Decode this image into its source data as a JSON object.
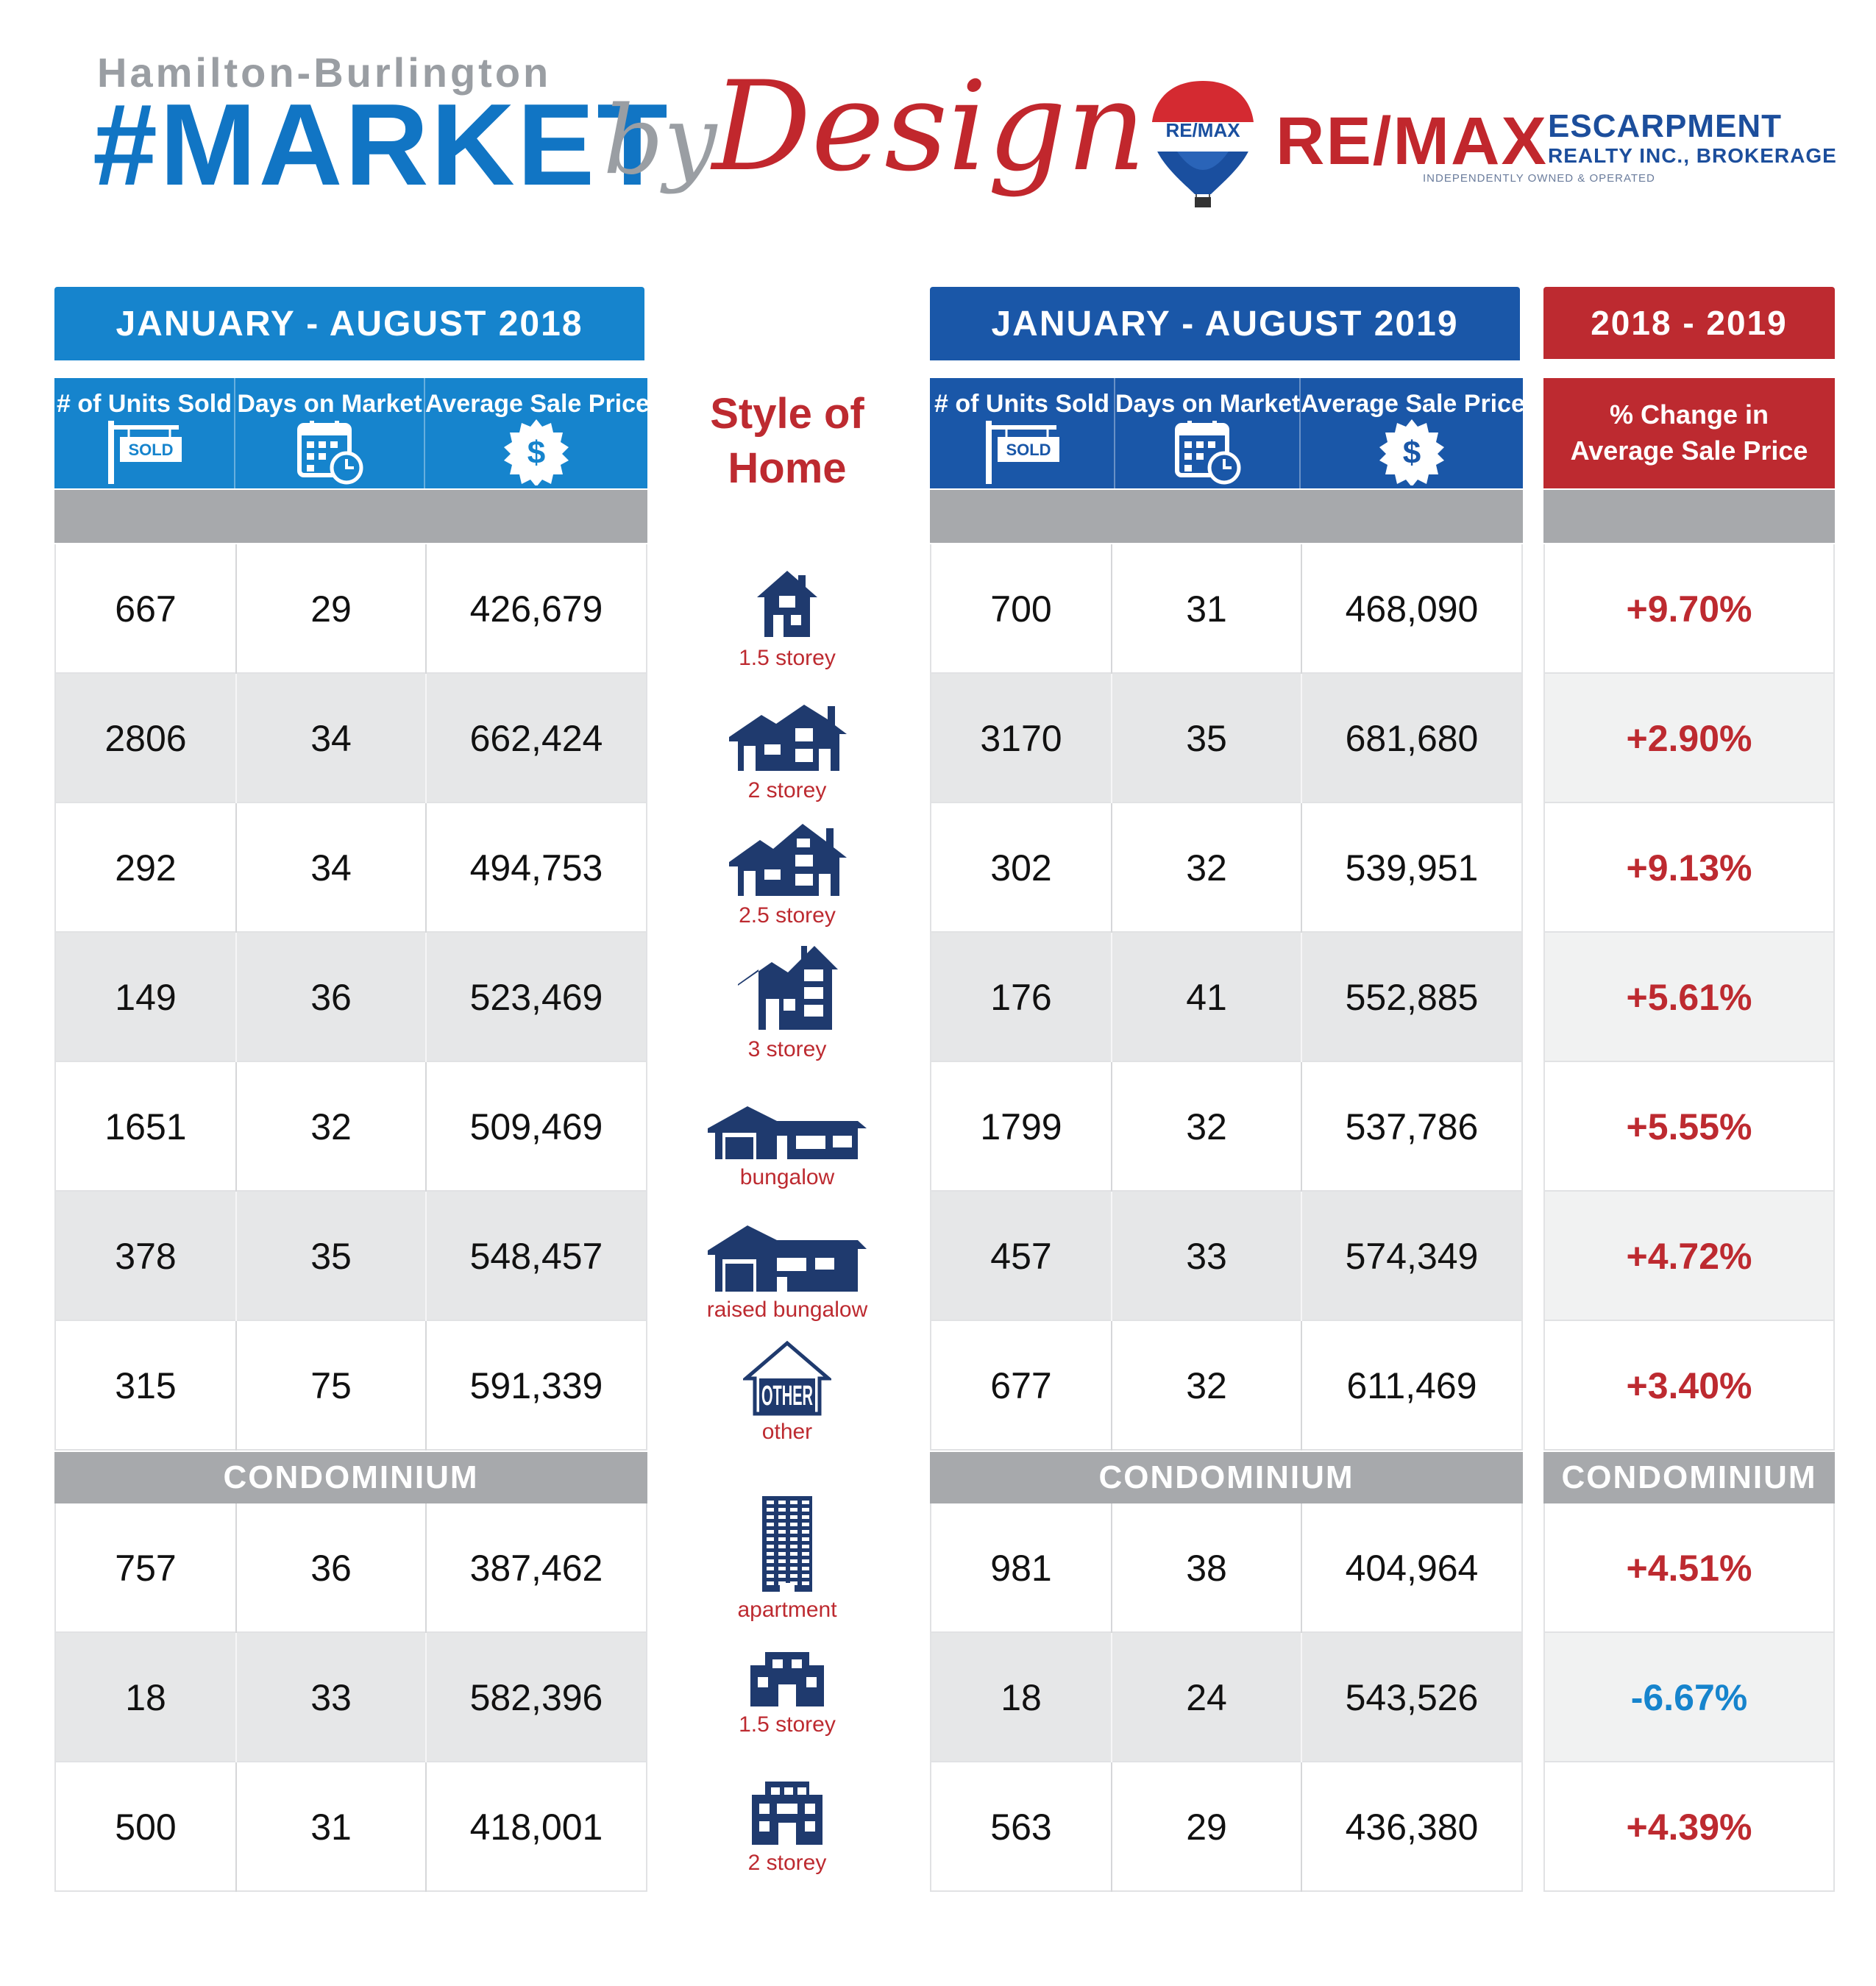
{
  "header": {
    "top_line": "Hamilton-Burlington",
    "main_word": "#MARKET",
    "by_word": "by",
    "design_word": "Design"
  },
  "logo": {
    "balloon_text": "RE/MAX",
    "wordmark": "RE/MAX",
    "line1": "ESCARPMENT",
    "line2": "REALTY INC., BROKERAGE",
    "line3": "INDEPENDENTLY OWNED & OPERATED"
  },
  "banners": {
    "left": "JANUARY -  AUGUST 2018",
    "right": "JANUARY - AUGUST 2019",
    "change": "2018 - 2019"
  },
  "columns": {
    "units": "# of Units Sold",
    "days": "Days on Market",
    "price": "Average Sale Price",
    "change_line1": "% Change in",
    "change_line2": "Average Sale Price",
    "sold_sign": "SOLD",
    "dollar": "$"
  },
  "style_title_1": "Style of",
  "style_title_2": "Home",
  "condo_label": "CONDOMINIUM",
  "freehold": [
    {
      "style": "1.5 storey",
      "icon": "house-1-5-storey-icon",
      "y2018": [
        "667",
        "29",
        "426,679"
      ],
      "y2019": [
        "700",
        "31",
        "468,090"
      ],
      "change": "+9.70%"
    },
    {
      "style": "2 storey",
      "icon": "house-2-storey-icon",
      "y2018": [
        "2806",
        "34",
        "662,424"
      ],
      "y2019": [
        "3170",
        "35",
        "681,680"
      ],
      "change": "+2.90%"
    },
    {
      "style": "2.5 storey",
      "icon": "house-2-5-storey-icon",
      "y2018": [
        "292",
        "34",
        "494,753"
      ],
      "y2019": [
        "302",
        "32",
        "539,951"
      ],
      "change": "+9.13%"
    },
    {
      "style": "3 storey",
      "icon": "house-3-storey-icon",
      "y2018": [
        "149",
        "36",
        "523,469"
      ],
      "y2019": [
        "176",
        "41",
        "552,885"
      ],
      "change": "+5.61%"
    },
    {
      "style": "bungalow",
      "icon": "bungalow-icon",
      "y2018": [
        "1651",
        "32",
        "509,469"
      ],
      "y2019": [
        "1799",
        "32",
        "537,786"
      ],
      "change": "+5.55%"
    },
    {
      "style": "raised bungalow",
      "icon": "raised-bungalow-icon",
      "y2018": [
        "378",
        "35",
        "548,457"
      ],
      "y2019": [
        "457",
        "33",
        "574,349"
      ],
      "change": "+4.72%"
    },
    {
      "style": "other",
      "icon": "other-house-icon",
      "icon_text": "OTHER",
      "y2018": [
        "315",
        "75",
        "591,339"
      ],
      "y2019": [
        "677",
        "32",
        "611,469"
      ],
      "change": "+3.40%"
    }
  ],
  "condo": [
    {
      "style": "apartment",
      "icon": "apartment-building-icon",
      "y2018": [
        "757",
        "36",
        "387,462"
      ],
      "y2019": [
        "981",
        "38",
        "404,964"
      ],
      "change": "+4.51%"
    },
    {
      "style": "1.5 storey",
      "icon": "condo-1-5-storey-icon",
      "y2018": [
        "18",
        "33",
        "582,396"
      ],
      "y2019": [
        "18",
        "24",
        "543,526"
      ],
      "change": "-6.67%"
    },
    {
      "style": "2 storey",
      "icon": "condo-2-storey-icon",
      "y2018": [
        "500",
        "31",
        "418,001"
      ],
      "y2019": [
        "563",
        "29",
        "436,380"
      ],
      "change": "+4.39%"
    }
  ],
  "colors": {
    "blue_2018": "#1684cd",
    "blue_2019": "#1a57a8",
    "red": "#bd2a30",
    "negative": "#1684cd",
    "icon_navy": "#1f3a6e"
  }
}
